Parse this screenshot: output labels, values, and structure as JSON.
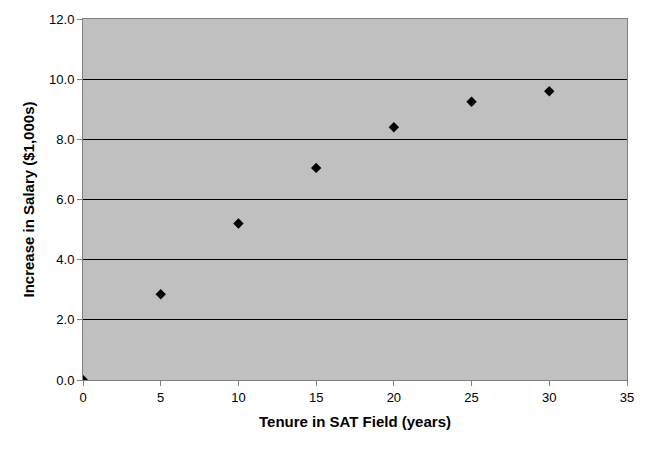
{
  "chart_data": {
    "type": "scatter",
    "x_label": "Tenure in SAT Field (years)",
    "y_label": "Increase in Salary ($1,000s)",
    "x": [
      0,
      5,
      10,
      15,
      20,
      25,
      30
    ],
    "values": [
      0,
      2.85,
      5.2,
      7.05,
      8.4,
      9.25,
      9.6
    ],
    "color": "#000000",
    "marker": "diamond",
    "xlim": [
      0,
      35
    ],
    "xticks": [
      0,
      5,
      10,
      15,
      20,
      25,
      30,
      35
    ],
    "ylim": [
      0,
      12
    ],
    "yticks": [
      {
        "value": 0,
        "label": "0.0"
      },
      {
        "value": 2,
        "label": "2.0"
      },
      {
        "value": 4,
        "label": "4.0"
      },
      {
        "value": 6,
        "label": "6.0"
      },
      {
        "value": 8,
        "label": "8.0"
      },
      {
        "value": 10,
        "label": "10.0"
      },
      {
        "value": 12,
        "label": "12.0"
      }
    ],
    "grid": "y"
  }
}
